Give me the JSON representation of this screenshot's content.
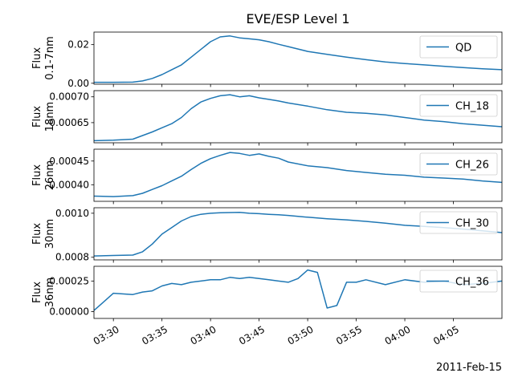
{
  "title": "EVE/ESP Level 1",
  "date_label": "2011-Feb-15",
  "line_color": "#1f77b4",
  "chart_data": [
    {
      "type": "line",
      "ylabel": [
        "Flux",
        "0.1-7nm"
      ],
      "legend": "QD",
      "legend_placement": "top-right",
      "yticks": [
        0.0,
        0.02
      ],
      "ytick_labels": [
        "0.00",
        "0.02"
      ],
      "ylim": [
        -0.0005,
        0.0265
      ],
      "x": [
        "03:28",
        "03:30",
        "03:32",
        "03:33",
        "03:34",
        "03:35",
        "03:36",
        "03:37",
        "03:38",
        "03:39",
        "03:40",
        "03:41",
        "03:42",
        "03:43",
        "03:44",
        "03:45",
        "03:46",
        "03:47",
        "03:48",
        "03:50",
        "03:52",
        "03:54",
        "03:56",
        "03:58",
        "04:00",
        "04:02",
        "04:04",
        "04:06",
        "04:08",
        "04:10"
      ],
      "values": [
        0.0005,
        0.0005,
        0.0006,
        0.0012,
        0.0025,
        0.0045,
        0.007,
        0.0095,
        0.0135,
        0.0175,
        0.0215,
        0.024,
        0.0245,
        0.0235,
        0.023,
        0.0225,
        0.0215,
        0.0202,
        0.019,
        0.0165,
        0.015,
        0.0135,
        0.0122,
        0.011,
        0.0102,
        0.0095,
        0.0088,
        0.0081,
        0.0075,
        0.007
      ]
    },
    {
      "type": "line",
      "ylabel": [
        "Flux",
        "18nm"
      ],
      "legend": "CH_18",
      "legend_placement": "top-right",
      "yticks": [
        0.00065,
        0.0007
      ],
      "ytick_labels": [
        "0.00065",
        "0.00070"
      ],
      "ylim": [
        0.000611,
        0.000712
      ],
      "x": [
        "03:28",
        "03:30",
        "03:32",
        "03:33",
        "03:34",
        "03:35",
        "03:36",
        "03:37",
        "03:38",
        "03:39",
        "03:40",
        "03:41",
        "03:42",
        "03:43",
        "03:44",
        "03:45",
        "03:46",
        "03:47",
        "03:48",
        "03:50",
        "03:52",
        "03:54",
        "03:56",
        "03:58",
        "04:00",
        "04:02",
        "04:04",
        "04:06",
        "04:08",
        "04:10"
      ],
      "values": [
        0.000615,
        0.000616,
        0.000618,
        0.000625,
        0.000632,
        0.00064,
        0.000648,
        0.00066,
        0.000677,
        0.00069,
        0.000697,
        0.000702,
        0.000704,
        0.0007,
        0.000702,
        0.000698,
        0.000695,
        0.000692,
        0.000688,
        0.000682,
        0.000675,
        0.00067,
        0.000668,
        0.000665,
        0.00066,
        0.000655,
        0.000652,
        0.000648,
        0.000645,
        0.000642
      ]
    },
    {
      "type": "line",
      "ylabel": [
        "Flux",
        "26nm"
      ],
      "legend": "CH_26",
      "legend_placement": "top-right",
      "yticks": [
        0.0004,
        0.00045
      ],
      "ytick_labels": [
        "0.00040",
        "0.00045"
      ],
      "ylim": [
        0.000365,
        0.000475
      ],
      "x": [
        "03:28",
        "03:30",
        "03:32",
        "03:33",
        "03:34",
        "03:35",
        "03:36",
        "03:37",
        "03:38",
        "03:39",
        "03:40",
        "03:41",
        "03:42",
        "03:43",
        "03:44",
        "03:45",
        "03:46",
        "03:47",
        "03:48",
        "03:50",
        "03:52",
        "03:54",
        "03:56",
        "03:58",
        "04:00",
        "04:02",
        "04:04",
        "04:06",
        "04:08",
        "04:10"
      ],
      "values": [
        0.000376,
        0.000375,
        0.000377,
        0.000382,
        0.00039,
        0.000398,
        0.000408,
        0.000418,
        0.000432,
        0.000445,
        0.000455,
        0.000462,
        0.000468,
        0.000466,
        0.000462,
        0.000465,
        0.00046,
        0.000456,
        0.000448,
        0.00044,
        0.000436,
        0.00043,
        0.000426,
        0.000422,
        0.00042,
        0.000416,
        0.000414,
        0.000412,
        0.000408,
        0.000405
      ]
    },
    {
      "type": "line",
      "ylabel": [
        "Flux",
        "30nm"
      ],
      "legend": "CH_30",
      "legend_placement": "top-right",
      "yticks": [
        0.0008,
        0.001
      ],
      "ytick_labels": [
        "0.0008",
        "0.0010"
      ],
      "ylim": [
        0.000788,
        0.001025
      ],
      "x": [
        "03:28",
        "03:30",
        "03:32",
        "03:33",
        "03:34",
        "03:35",
        "03:36",
        "03:37",
        "03:38",
        "03:39",
        "03:40",
        "03:41",
        "03:42",
        "03:43",
        "03:44",
        "03:45",
        "03:46",
        "03:47",
        "03:48",
        "03:50",
        "03:52",
        "03:54",
        "03:56",
        "03:58",
        "04:00",
        "04:02",
        "04:04",
        "04:06",
        "04:08",
        "04:10"
      ],
      "values": [
        0.000806,
        0.000808,
        0.00081,
        0.000825,
        0.00086,
        0.000905,
        0.000935,
        0.000965,
        0.000985,
        0.000995,
        0.001,
        0.001002,
        0.001003,
        0.001004,
        0.001,
        0.000998,
        0.000995,
        0.000993,
        0.00099,
        0.000982,
        0.000975,
        0.00097,
        0.000963,
        0.000955,
        0.000945,
        0.00094,
        0.000935,
        0.000928,
        0.00092,
        0.000912
      ]
    },
    {
      "type": "line",
      "ylabel": [
        "Flux",
        "36nm"
      ],
      "legend": "CH_36",
      "legend_placement": "top-right",
      "yticks": [
        0.0,
        0.00025
      ],
      "ytick_labels": [
        "0.00000",
        "0.00025"
      ],
      "ylim": [
        -5.5e-05,
        0.00037
      ],
      "x": [
        "03:28",
        "03:30",
        "03:32",
        "03:33",
        "03:34",
        "03:35",
        "03:36",
        "03:37",
        "03:38",
        "03:39",
        "03:40",
        "03:41",
        "03:42",
        "03:43",
        "03:44",
        "03:45",
        "03:46",
        "03:47",
        "03:48",
        "03:49",
        "03:50",
        "03:51",
        "03:52",
        "03:53",
        "03:54",
        "03:55",
        "03:56",
        "03:58",
        "04:00",
        "04:02",
        "04:04",
        "04:06",
        "04:08",
        "04:10"
      ],
      "values": [
        1e-05,
        0.00015,
        0.00014,
        0.00016,
        0.00017,
        0.00021,
        0.00023,
        0.00022,
        0.00024,
        0.00025,
        0.00026,
        0.00026,
        0.00028,
        0.00027,
        0.00028,
        0.00027,
        0.00026,
        0.00025,
        0.00024,
        0.00027,
        0.00034,
        0.00032,
        3e-05,
        5e-05,
        0.00024,
        0.00024,
        0.00026,
        0.00022,
        0.00026,
        0.00024,
        0.00025,
        0.00022,
        0.00023,
        0.00025
      ]
    }
  ],
  "xaxis": {
    "tick_labels": [
      "03:30",
      "03:35",
      "03:40",
      "03:45",
      "03:50",
      "03:55",
      "04:00",
      "04:05"
    ],
    "xlim": [
      "03:28",
      "04:10"
    ]
  }
}
